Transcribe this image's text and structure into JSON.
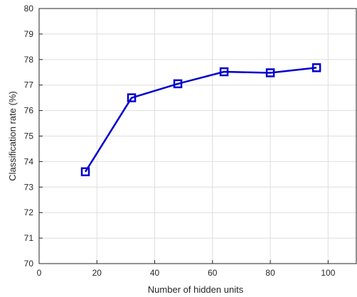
{
  "chart_data": {
    "type": "line",
    "title": "",
    "xlabel": "Number of hidden units",
    "ylabel": "Classification rate (%)",
    "xlim": [
      0,
      110
    ],
    "ylim": [
      70,
      80
    ],
    "xticks": [
      0,
      20,
      40,
      60,
      80,
      100
    ],
    "yticks": [
      70,
      71,
      72,
      73,
      74,
      75,
      76,
      77,
      78,
      79,
      80
    ],
    "grid": true,
    "series": [
      {
        "x": [
          16,
          32,
          48,
          64,
          80,
          96
        ],
        "y": [
          73.6,
          76.5,
          77.05,
          77.52,
          77.48,
          77.68
        ],
        "marker": "square",
        "color": "#0000cd"
      }
    ]
  }
}
